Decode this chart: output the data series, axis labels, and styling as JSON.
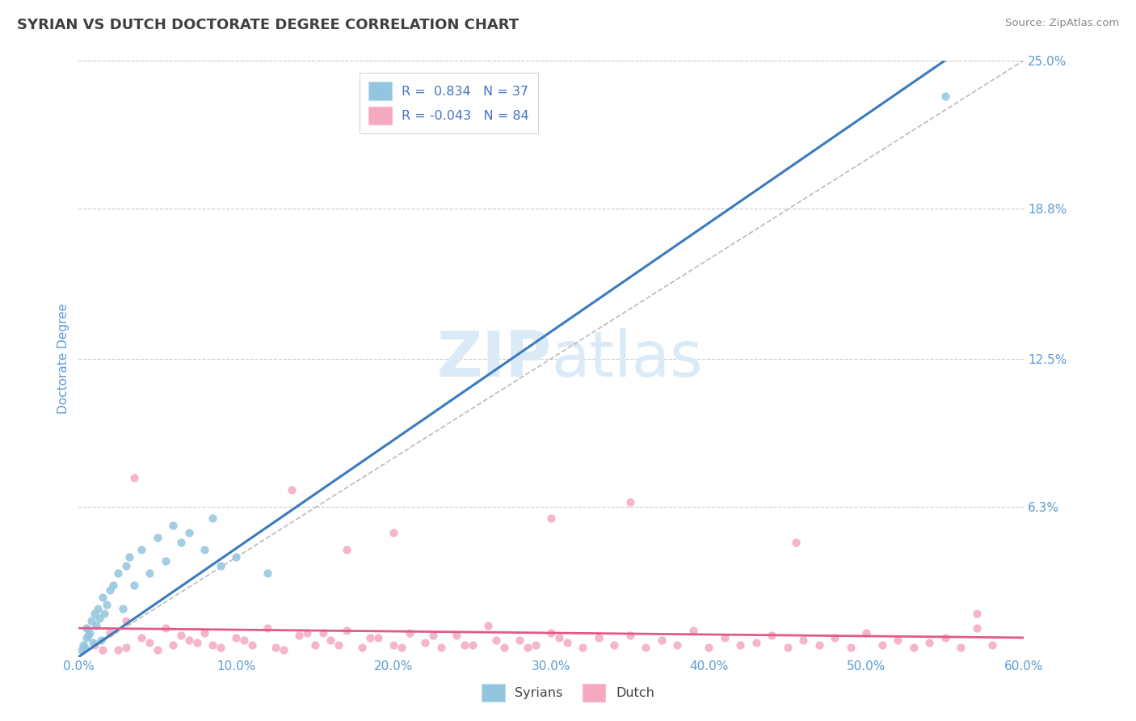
{
  "title": "SYRIAN VS DUTCH DOCTORATE DEGREE CORRELATION CHART",
  "source": "Source: ZipAtlas.com",
  "ylabel": "Doctorate Degree",
  "xlim": [
    0.0,
    60.0
  ],
  "ylim": [
    0.0,
    25.0
  ],
  "y_ticks": [
    0.0,
    6.3,
    12.5,
    18.8,
    25.0
  ],
  "y_tick_labels": [
    "",
    "6.3%",
    "12.5%",
    "18.8%",
    "25.0%"
  ],
  "x_ticks": [
    0.0,
    10.0,
    20.0,
    30.0,
    40.0,
    50.0,
    60.0
  ],
  "x_tick_labels": [
    "0.0%",
    "10.0%",
    "20.0%",
    "30.0%",
    "40.0%",
    "50.0%",
    "60.0%"
  ],
  "syrian_R": 0.834,
  "syrian_N": 37,
  "dutch_R": -0.043,
  "dutch_N": 84,
  "syrian_color": "#92c5de",
  "dutch_color": "#f4a9c0",
  "syrian_line_color": "#3a7abf",
  "dutch_line_color": "#e05a8a",
  "ref_line_color": "#bbbbbb",
  "title_color": "#404040",
  "axis_label_color": "#5b9bd5",
  "tick_color": "#5b9bd5",
  "background_color": "#ffffff",
  "watermark_color": "#daeaf7",
  "legend_R_color": "#4472c4",
  "grid_color": "#cccccc",
  "syrian_line_x": [
    0.0,
    55.0
  ],
  "syrian_line_y": [
    0.0,
    25.0
  ],
  "dutch_line_x": [
    0.0,
    60.0
  ],
  "dutch_line_y": [
    1.2,
    0.8
  ],
  "ref_line_x": [
    0.0,
    60.0
  ],
  "ref_line_y": [
    0.0,
    25.0
  ],
  "syrian_scatter": [
    [
      0.2,
      0.3
    ],
    [
      0.3,
      0.5
    ],
    [
      0.4,
      0.4
    ],
    [
      0.5,
      0.8
    ],
    [
      0.5,
      1.2
    ],
    [
      0.6,
      0.9
    ],
    [
      0.7,
      1.0
    ],
    [
      0.8,
      1.5
    ],
    [
      0.9,
      0.6
    ],
    [
      1.0,
      1.8
    ],
    [
      1.1,
      1.3
    ],
    [
      1.2,
      2.0
    ],
    [
      1.3,
      1.6
    ],
    [
      1.4,
      0.7
    ],
    [
      1.5,
      2.5
    ],
    [
      1.6,
      1.8
    ],
    [
      1.8,
      2.2
    ],
    [
      2.0,
      2.8
    ],
    [
      2.2,
      3.0
    ],
    [
      2.5,
      3.5
    ],
    [
      2.8,
      2.0
    ],
    [
      3.0,
      3.8
    ],
    [
      3.2,
      4.2
    ],
    [
      3.5,
      3.0
    ],
    [
      4.0,
      4.5
    ],
    [
      4.5,
      3.5
    ],
    [
      5.0,
      5.0
    ],
    [
      5.5,
      4.0
    ],
    [
      6.0,
      5.5
    ],
    [
      6.5,
      4.8
    ],
    [
      7.0,
      5.2
    ],
    [
      8.0,
      4.5
    ],
    [
      8.5,
      5.8
    ],
    [
      9.0,
      3.8
    ],
    [
      10.0,
      4.2
    ],
    [
      12.0,
      3.5
    ],
    [
      55.0,
      23.5
    ]
  ],
  "dutch_scatter": [
    [
      1.0,
      0.5
    ],
    [
      2.0,
      1.0
    ],
    [
      3.0,
      0.4
    ],
    [
      4.0,
      0.8
    ],
    [
      5.0,
      0.3
    ],
    [
      5.5,
      1.2
    ],
    [
      6.0,
      0.5
    ],
    [
      7.0,
      0.7
    ],
    [
      8.0,
      1.0
    ],
    [
      9.0,
      0.4
    ],
    [
      10.0,
      0.8
    ],
    [
      11.0,
      0.5
    ],
    [
      12.0,
      1.2
    ],
    [
      13.0,
      0.3
    ],
    [
      14.0,
      0.9
    ],
    [
      15.0,
      0.5
    ],
    [
      16.0,
      0.7
    ],
    [
      17.0,
      1.1
    ],
    [
      18.0,
      0.4
    ],
    [
      19.0,
      0.8
    ],
    [
      20.0,
      0.5
    ],
    [
      21.0,
      1.0
    ],
    [
      22.0,
      0.6
    ],
    [
      23.0,
      0.4
    ],
    [
      24.0,
      0.9
    ],
    [
      25.0,
      0.5
    ],
    [
      26.0,
      1.3
    ],
    [
      27.0,
      0.4
    ],
    [
      28.0,
      0.7
    ],
    [
      29.0,
      0.5
    ],
    [
      30.0,
      1.0
    ],
    [
      31.0,
      0.6
    ],
    [
      32.0,
      0.4
    ],
    [
      33.0,
      0.8
    ],
    [
      34.0,
      0.5
    ],
    [
      35.0,
      0.9
    ],
    [
      36.0,
      0.4
    ],
    [
      37.0,
      0.7
    ],
    [
      38.0,
      0.5
    ],
    [
      39.0,
      1.1
    ],
    [
      40.0,
      0.4
    ],
    [
      41.0,
      0.8
    ],
    [
      42.0,
      0.5
    ],
    [
      43.0,
      0.6
    ],
    [
      44.0,
      0.9
    ],
    [
      45.0,
      0.4
    ],
    [
      46.0,
      0.7
    ],
    [
      47.0,
      0.5
    ],
    [
      48.0,
      0.8
    ],
    [
      49.0,
      0.4
    ],
    [
      50.0,
      1.0
    ],
    [
      51.0,
      0.5
    ],
    [
      52.0,
      0.7
    ],
    [
      53.0,
      0.4
    ],
    [
      54.0,
      0.6
    ],
    [
      55.0,
      0.8
    ],
    [
      56.0,
      0.4
    ],
    [
      57.0,
      1.2
    ],
    [
      58.0,
      0.5
    ],
    [
      2.5,
      0.3
    ],
    [
      4.5,
      0.6
    ],
    [
      6.5,
      0.9
    ],
    [
      8.5,
      0.5
    ],
    [
      10.5,
      0.7
    ],
    [
      12.5,
      0.4
    ],
    [
      14.5,
      1.0
    ],
    [
      16.5,
      0.5
    ],
    [
      18.5,
      0.8
    ],
    [
      20.5,
      0.4
    ],
    [
      22.5,
      0.9
    ],
    [
      24.5,
      0.5
    ],
    [
      26.5,
      0.7
    ],
    [
      28.5,
      0.4
    ],
    [
      30.5,
      0.8
    ],
    [
      3.5,
      7.5
    ],
    [
      13.5,
      7.0
    ],
    [
      20.0,
      5.2
    ],
    [
      35.0,
      6.5
    ],
    [
      45.5,
      4.8
    ],
    [
      17.0,
      4.5
    ],
    [
      30.0,
      5.8
    ],
    [
      57.0,
      1.8
    ],
    [
      1.5,
      0.3
    ],
    [
      3.0,
      1.5
    ],
    [
      7.5,
      0.6
    ],
    [
      15.5,
      1.0
    ]
  ]
}
